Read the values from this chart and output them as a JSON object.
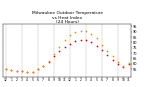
{
  "title": "Milwaukee Outdoor Temperature\nvs Heat Index\n(24 Hours)",
  "title_fontsize": 3.2,
  "hours": [
    0,
    1,
    2,
    3,
    4,
    5,
    6,
    7,
    8,
    9,
    10,
    11,
    12,
    13,
    14,
    15,
    16,
    17,
    18,
    19,
    20,
    21,
    22,
    23
  ],
  "temp": [
    55,
    54,
    53,
    53,
    52,
    52,
    55,
    58,
    62,
    67,
    72,
    76,
    79,
    81,
    82,
    82,
    80,
    77,
    73,
    68,
    64,
    60,
    57,
    60
  ],
  "heat_index": [
    55,
    54,
    53,
    53,
    52,
    52,
    55,
    58,
    63,
    69,
    76,
    82,
    87,
    90,
    91,
    91,
    88,
    84,
    78,
    72,
    67,
    62,
    58,
    61
  ],
  "temp_color": "#cc0000",
  "heat_color": "#ff8800",
  "bg_color": "#ffffff",
  "ylim": [
    48,
    97
  ],
  "yticks": [
    55,
    60,
    65,
    70,
    75,
    80,
    85,
    90,
    95
  ],
  "ytick_labels": [
    "55",
    "60",
    "65",
    "70",
    "75",
    "80",
    "85",
    "90",
    "95"
  ],
  "grid_hours": [
    0,
    3,
    6,
    9,
    12,
    15,
    18,
    21
  ],
  "xlabel_hours": [
    "12",
    "1",
    "2",
    "3",
    "4",
    "5",
    "6",
    "7",
    "8",
    "9",
    "10",
    "11",
    "12",
    "1",
    "2",
    "3",
    "4",
    "5",
    "6",
    "7",
    "8",
    "9",
    "10",
    "11"
  ],
  "marker_size": 1.5
}
